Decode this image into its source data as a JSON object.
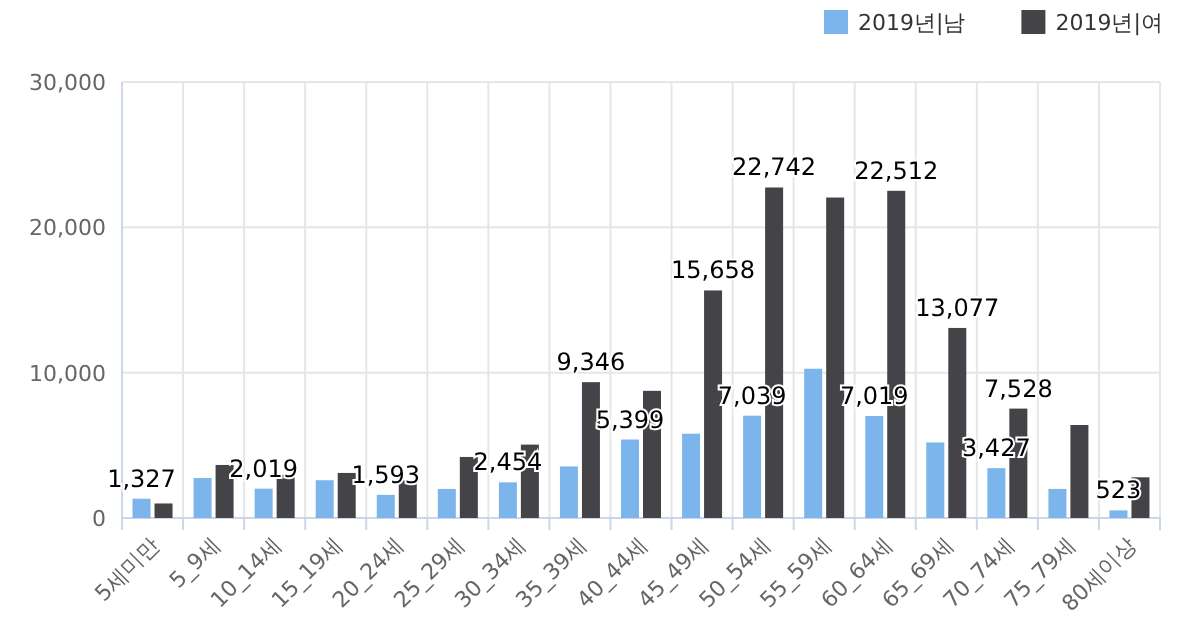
{
  "chart_data": {
    "type": "bar",
    "categories": [
      "5세미만",
      "5_9세",
      "10_14세",
      "15_19세",
      "20_24세",
      "25_29세",
      "30_34세",
      "35_39세",
      "40_44세",
      "45_49세",
      "50_54세",
      "55_59세",
      "60_64세",
      "65_69세",
      "70_74세",
      "75_79세",
      "80세이상"
    ],
    "series": [
      {
        "name": "2019년|남",
        "color": "#7cb5ec",
        "values": [
          1327,
          2750,
          2019,
          2600,
          1593,
          2000,
          2454,
          3550,
          5399,
          5800,
          7039,
          10270,
          7019,
          5200,
          3427,
          2000,
          523
        ],
        "value_labels": [
          "1,327",
          null,
          "2,019",
          null,
          "1,593",
          null,
          "2,454",
          null,
          "5,399",
          null,
          "7,039",
          null,
          "7,019",
          null,
          "3,427",
          null,
          "523"
        ]
      },
      {
        "name": "2019년|여",
        "color": "#434348",
        "values": [
          1000,
          3650,
          3000,
          3100,
          2600,
          4200,
          5050,
          9346,
          8750,
          15658,
          22742,
          22050,
          22512,
          13077,
          7528,
          6400,
          2800
        ],
        "value_labels": [
          null,
          null,
          null,
          null,
          null,
          null,
          null,
          "9,346",
          null,
          "15,658",
          "22,742",
          null,
          "22,512",
          "13,077",
          "7,528",
          null,
          null
        ]
      }
    ],
    "ylim": [
      0,
      30000
    ],
    "yticks": [
      {
        "value": 0,
        "label": "0"
      },
      {
        "value": 10000,
        "label": "10,000"
      },
      {
        "value": 20000,
        "label": "20,000"
      },
      {
        "value": 30000,
        "label": "30,000"
      }
    ],
    "grid": true,
    "legend": "top right"
  }
}
